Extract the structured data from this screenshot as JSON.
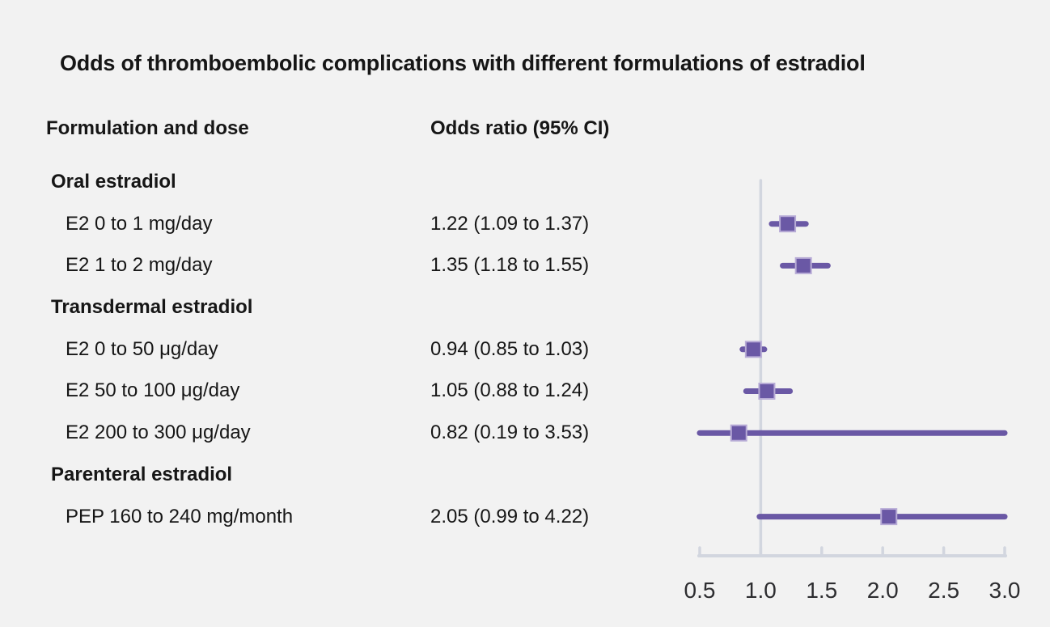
{
  "title": "Odds of thromboembolic complications with different formulations of estradiol",
  "columns": {
    "formulation": "Formulation and dose",
    "odds_ratio": "Odds ratio (95% CI)"
  },
  "rows": [
    {
      "label": "Oral estradiol",
      "value": "",
      "type": "group"
    },
    {
      "label": "E2 0 to 1 mg/day",
      "value": "1.22 (1.09 to 1.37)",
      "type": "item"
    },
    {
      "label": "E2 1 to 2 mg/day",
      "value": "1.35 (1.18 to 1.55)",
      "type": "item"
    },
    {
      "label": "Transdermal estradiol",
      "value": "",
      "type": "group"
    },
    {
      "label": "E2 0 to 50 μg/day",
      "value": "0.94 (0.85 to 1.03)",
      "type": "item"
    },
    {
      "label": "E2 50 to 100 μg/day",
      "value": "1.05 (0.88 to 1.24)",
      "type": "item"
    },
    {
      "label": "E2 200 to 300 μg/day",
      "value": "0.82 (0.19 to 3.53)",
      "type": "item"
    },
    {
      "label": "Parenteral estradiol",
      "value": "",
      "type": "group"
    },
    {
      "label": "PEP 160 to 240 mg/month",
      "value": "2.05 (0.99 to 4.22)",
      "type": "item"
    }
  ],
  "chart_data": {
    "type": "forest",
    "title": "Odds of thromboembolic complications with different formulations of estradiol",
    "xlabel": "",
    "ylabel": "",
    "x_axis": {
      "min": 0.5,
      "max": 3.0,
      "ticks": [
        0.5,
        1.0,
        1.5,
        2.0,
        2.5,
        3.0
      ],
      "tick_labels": [
        "0.5",
        "1.0",
        "1.5",
        "2.0",
        "2.5",
        "3.0"
      ],
      "reference_line": 1.0
    },
    "points": [
      {
        "label": "E2 0 to 1 mg/day",
        "or": 1.22,
        "lo": 1.09,
        "hi": 1.37,
        "row": 1
      },
      {
        "label": "E2 1 to 2 mg/day",
        "or": 1.35,
        "lo": 1.18,
        "hi": 1.55,
        "row": 2
      },
      {
        "label": "E2 0 to 50 μg/day",
        "or": 0.94,
        "lo": 0.85,
        "hi": 1.03,
        "row": 4
      },
      {
        "label": "E2 50 to 100 μg/day",
        "or": 1.05,
        "lo": 0.88,
        "hi": 1.24,
        "row": 5
      },
      {
        "label": "E2 200 to 300 μg/day",
        "or": 0.82,
        "lo": 0.19,
        "hi": 3.53,
        "row": 6
      },
      {
        "label": "PEP 160 to 240 mg/month",
        "or": 2.05,
        "lo": 0.99,
        "hi": 4.22,
        "row": 8
      }
    ],
    "colors": {
      "marker": "#6a58a5",
      "marker_halo": "#b7abd6",
      "ci_line": "#6a58a5",
      "axis": "#d2d6df",
      "reference_line": "#d2d6df",
      "tick_label": "#2d2d30",
      "background": "#f2f2f2"
    },
    "legend": null,
    "grid": false
  }
}
